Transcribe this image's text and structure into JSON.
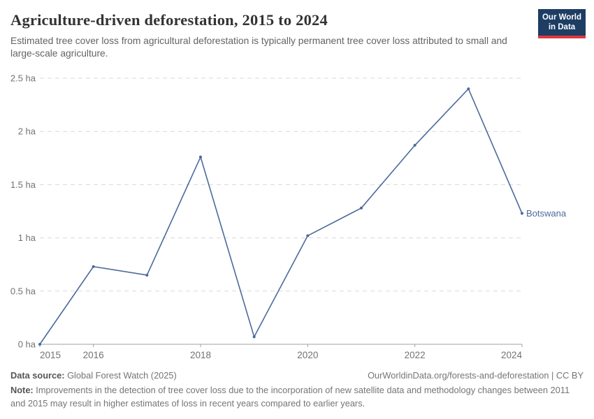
{
  "header": {
    "title": "Agriculture-driven deforestation, 2015 to 2024",
    "subtitle": "Estimated tree cover loss from agricultural deforestation is typically permanent tree cover loss attributed to small and large-scale agriculture."
  },
  "logo": {
    "line1": "Our World",
    "line2": "in Data",
    "bg_color": "#1d3d63",
    "accent_color": "#e0383f"
  },
  "chart_data": {
    "type": "line",
    "title": "Agriculture-driven deforestation, 2015 to 2024",
    "unit": "ha",
    "x": [
      2015,
      2016,
      2017,
      2018,
      2019,
      2020,
      2021,
      2022,
      2023,
      2024
    ],
    "series": [
      {
        "name": "Botswana",
        "color": "#4c6a9c",
        "values": [
          0,
          0.73,
          0.65,
          1.76,
          0.07,
          1.02,
          1.28,
          1.87,
          2.4,
          1.23
        ]
      }
    ],
    "ylim": [
      0,
      2.5
    ],
    "yticks": [
      {
        "value": 0,
        "label": "0 ha"
      },
      {
        "value": 0.5,
        "label": "0.5 ha"
      },
      {
        "value": 1,
        "label": "1 ha"
      },
      {
        "value": 1.5,
        "label": "1.5 ha"
      },
      {
        "value": 2,
        "label": "2 ha"
      },
      {
        "value": 2.5,
        "label": "2.5 ha"
      }
    ],
    "xticks": [
      2015,
      2016,
      2018,
      2020,
      2022,
      2024
    ],
    "grid": "horizontal-dashed",
    "legend_position": "end-of-line-label"
  },
  "footer": {
    "source_label": "Data source:",
    "source_value": "Global Forest Watch (2025)",
    "attribution": "OurWorldinData.org/forests-and-deforestation | CC BY",
    "note_label": "Note:",
    "note_value": "Improvements in the detection of tree cover loss due to the incorporation of new satellite data and methodology changes between 2011 and 2015 may result in higher estimates of loss in recent years compared to earlier years."
  }
}
